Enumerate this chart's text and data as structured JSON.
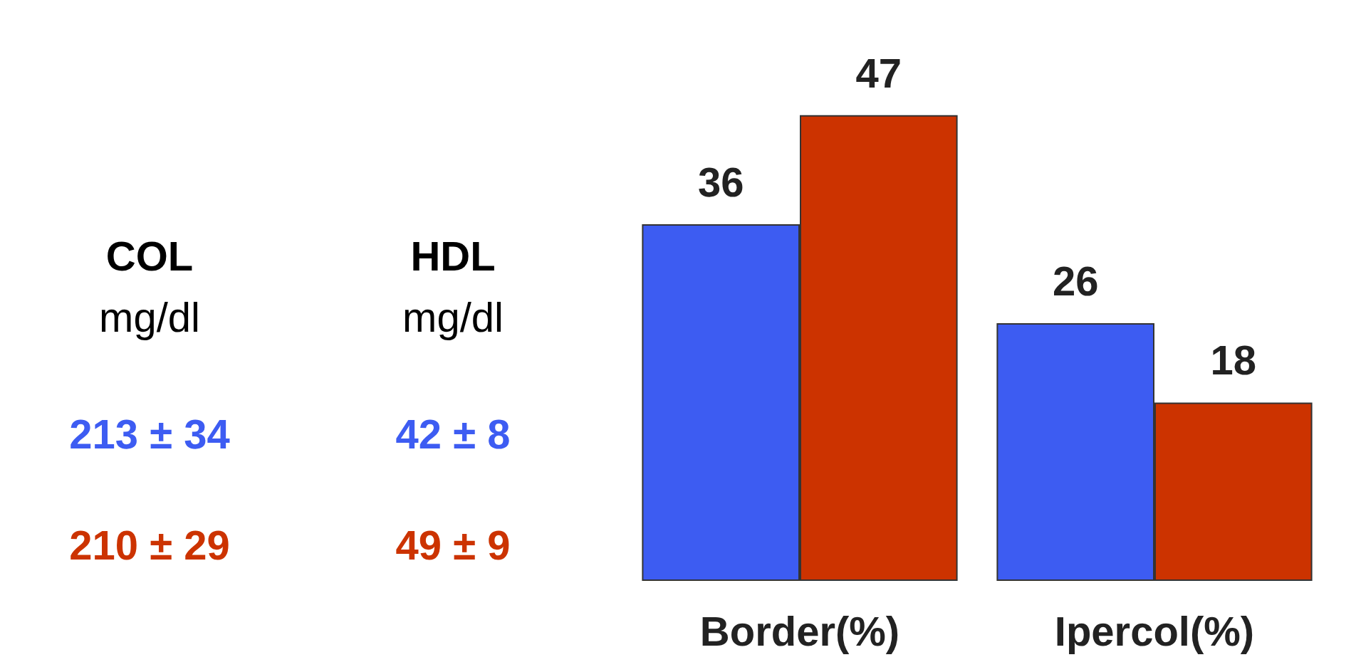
{
  "chart_data": [
    {
      "type": "other",
      "annotations": [
        "COL",
        "mg/dl",
        "HDL",
        "mg/dl",
        "213 ± 34",
        "42 ± 8",
        "210 ± 29",
        "49 ± 9"
      ]
    },
    {
      "type": "bar",
      "categories": [
        "Border(%)",
        "Ipercol(%)"
      ],
      "data_labels": true,
      "series": [
        {
          "color": "#3d5cf2",
          "values": [
            36,
            26
          ]
        },
        {
          "color": "#cc3300",
          "values": [
            47,
            18
          ]
        }
      ]
    }
  ]
}
